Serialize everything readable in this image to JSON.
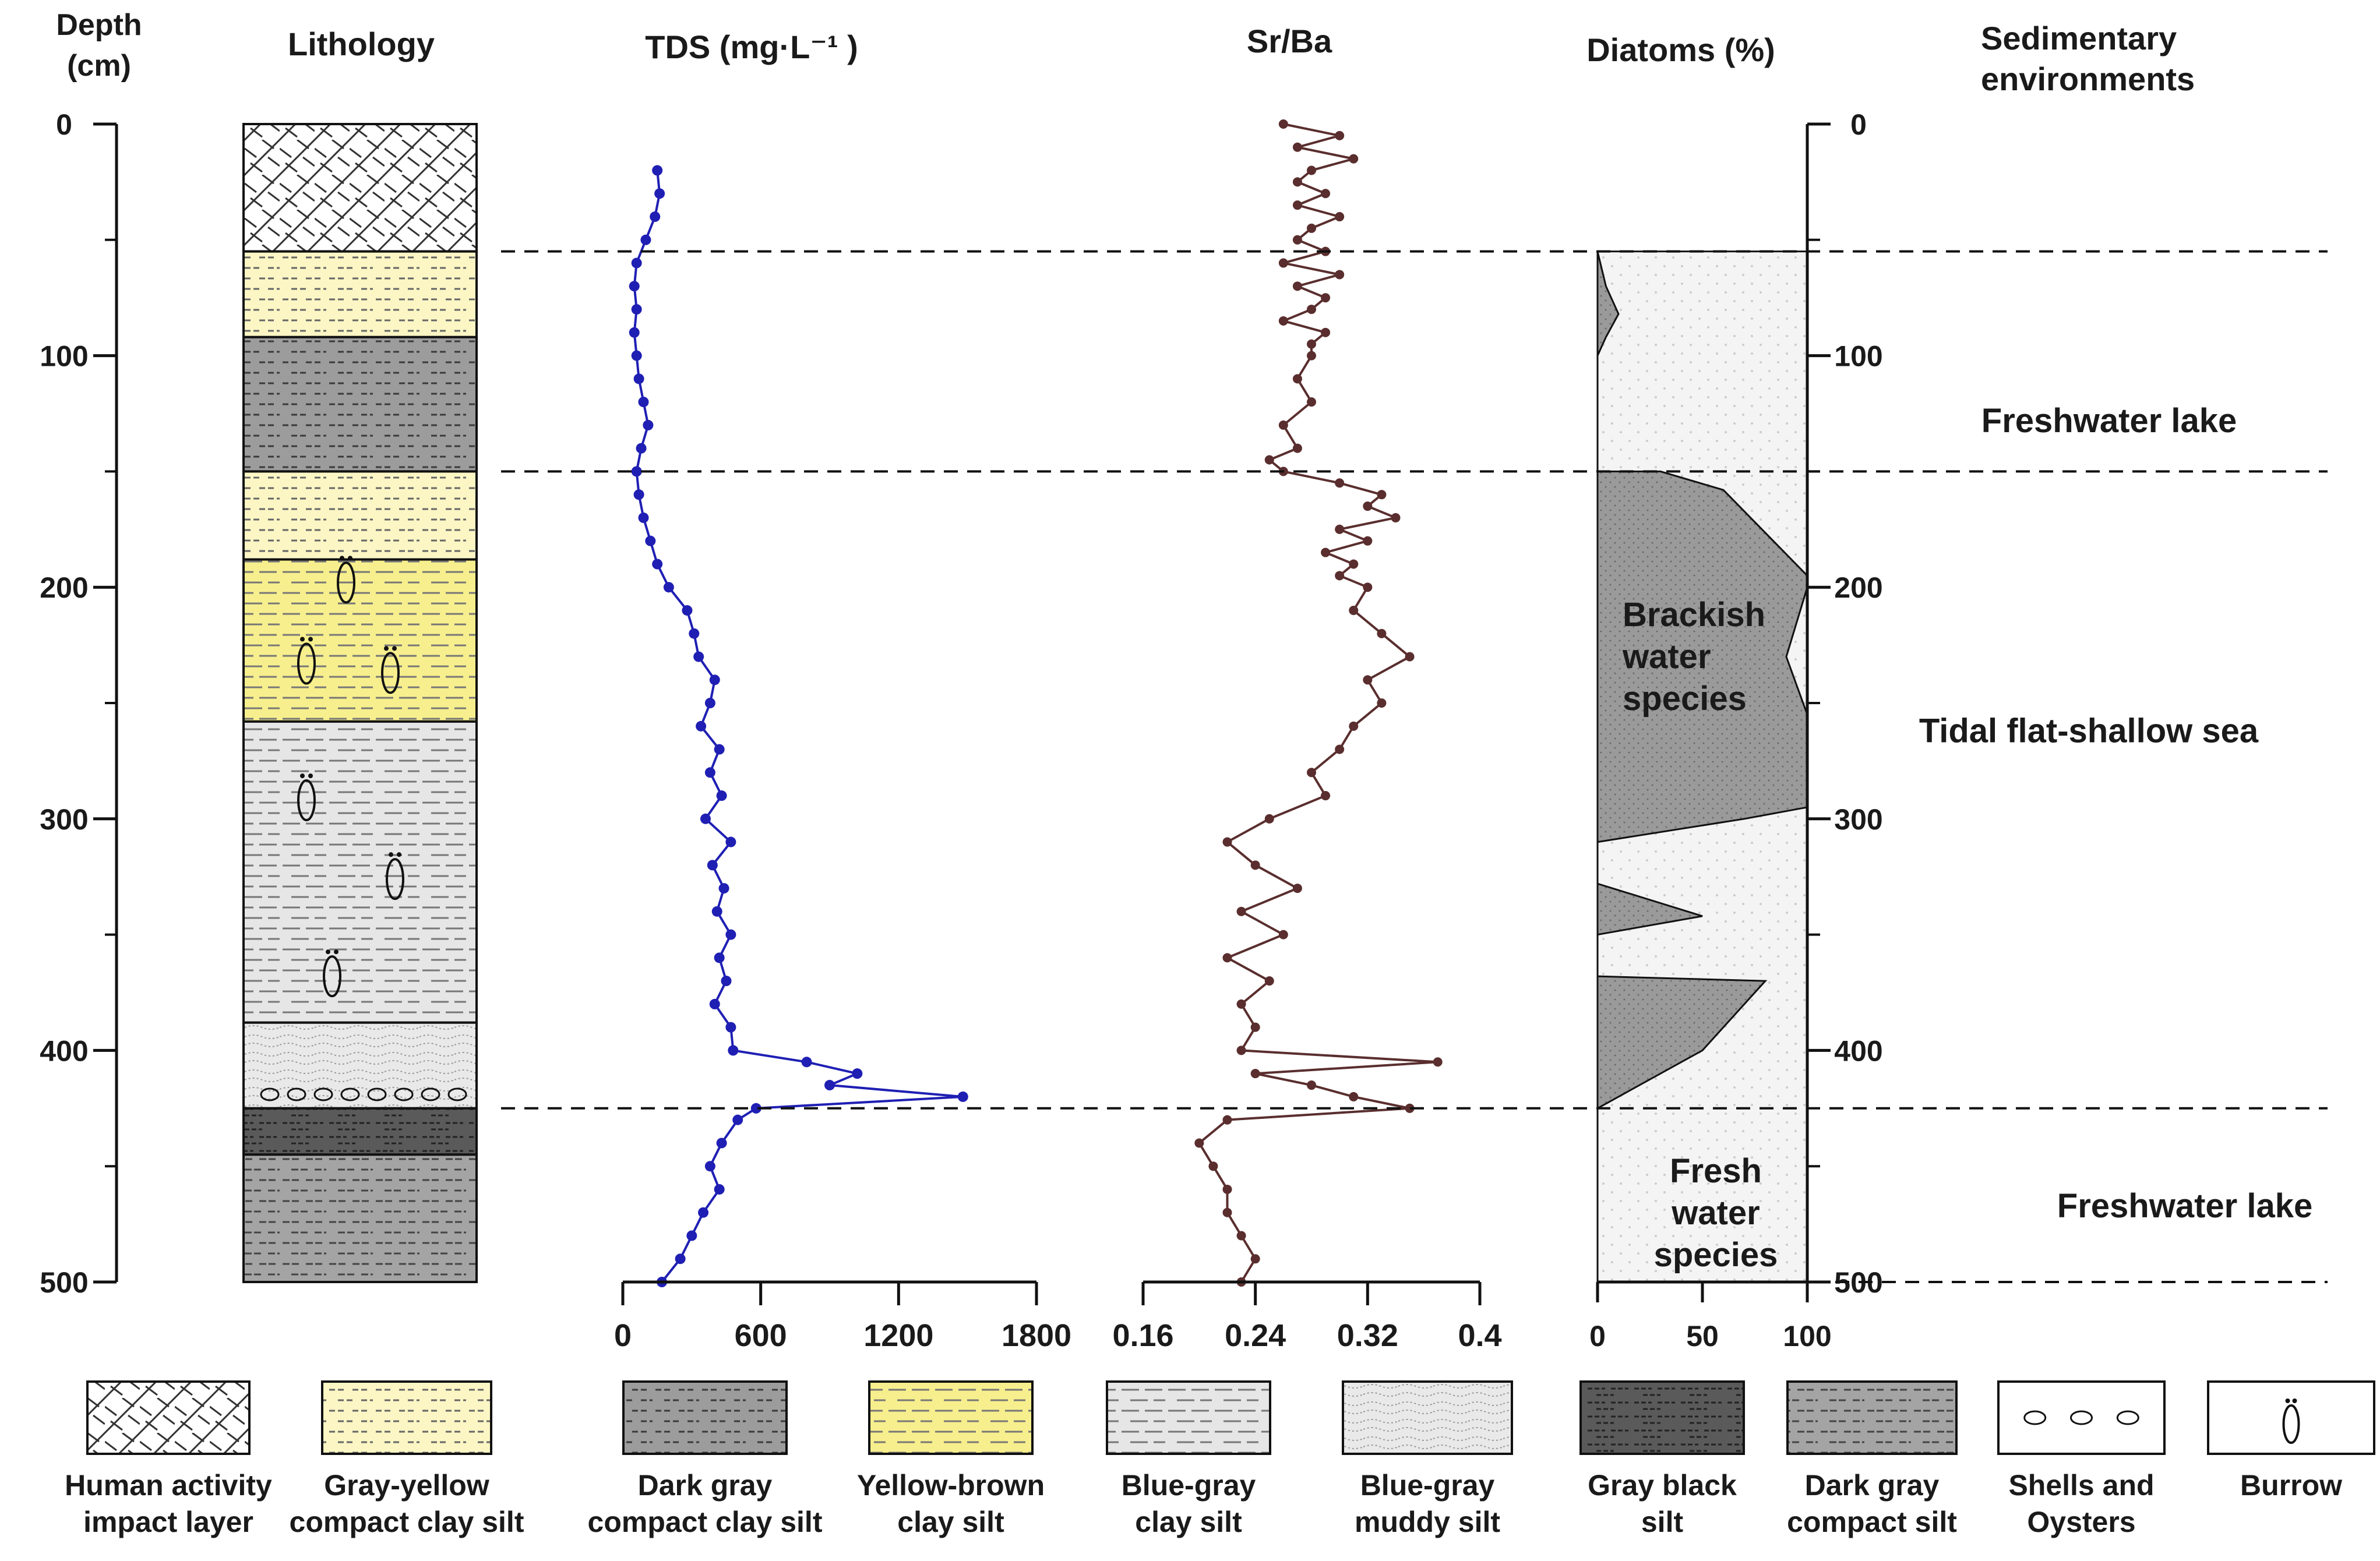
{
  "chart_data": {
    "type": "line",
    "title": "",
    "depth_axis": {
      "title_line1": "Depth",
      "title_line2": "(cm)",
      "ticks": [
        0,
        100,
        200,
        300,
        400,
        500
      ],
      "range": [
        0,
        500
      ]
    },
    "lithology": {
      "header": "Lithology",
      "layers": [
        {
          "top": 0,
          "bottom": 55,
          "type": "human"
        },
        {
          "top": 55,
          "bottom": 92,
          "type": "grayyellow"
        },
        {
          "top": 92,
          "bottom": 150,
          "type": "darkgray"
        },
        {
          "top": 150,
          "bottom": 188,
          "type": "grayyellow"
        },
        {
          "top": 188,
          "bottom": 258,
          "type": "yellowbrown"
        },
        {
          "top": 258,
          "bottom": 388,
          "type": "bluegray"
        },
        {
          "top": 388,
          "bottom": 425,
          "type": "muddy"
        },
        {
          "top": 425,
          "bottom": 445,
          "type": "grayblack"
        },
        {
          "top": 445,
          "bottom": 500,
          "type": "darkgraysilt"
        }
      ],
      "burrows": [
        {
          "depth": 198,
          "x": 0.44
        },
        {
          "depth": 233,
          "x": 0.27
        },
        {
          "depth": 237,
          "x": 0.63
        },
        {
          "depth": 292,
          "x": 0.27
        },
        {
          "depth": 326,
          "x": 0.65
        },
        {
          "depth": 368,
          "x": 0.38
        }
      ],
      "shells_depth": 419
    },
    "tds": {
      "header": "TDS (mg·L⁻¹ )",
      "xlim": [
        0,
        1800
      ],
      "ticks": [
        0,
        600,
        1200,
        1800
      ],
      "color": "#1f1fb4",
      "depth": [
        20,
        30,
        40,
        50,
        60,
        70,
        80,
        90,
        100,
        110,
        120,
        130,
        140,
        150,
        160,
        170,
        180,
        190,
        200,
        210,
        220,
        230,
        240,
        250,
        260,
        270,
        280,
        290,
        300,
        310,
        320,
        330,
        340,
        350,
        360,
        370,
        380,
        390,
        400,
        405,
        410,
        415,
        420,
        425,
        430,
        440,
        450,
        460,
        470,
        480,
        490,
        500
      ],
      "values": [
        150,
        160,
        140,
        100,
        60,
        50,
        60,
        50,
        60,
        70,
        90,
        110,
        80,
        60,
        70,
        90,
        120,
        150,
        200,
        280,
        310,
        330,
        400,
        380,
        340,
        420,
        380,
        430,
        360,
        470,
        390,
        440,
        410,
        470,
        420,
        450,
        400,
        470,
        480,
        800,
        1020,
        900,
        1480,
        580,
        500,
        430,
        380,
        420,
        350,
        300,
        250,
        170
      ]
    },
    "sr_ba": {
      "header": "Sr/Ba",
      "xlim": [
        0.16,
        0.4
      ],
      "ticks": [
        "0.16",
        "0.24",
        "0.32",
        "0.4"
      ],
      "color": "#5a2e2e",
      "depth": [
        0,
        5,
        10,
        15,
        20,
        25,
        30,
        35,
        40,
        45,
        50,
        55,
        60,
        65,
        70,
        75,
        80,
        85,
        90,
        95,
        100,
        110,
        120,
        130,
        140,
        145,
        150,
        155,
        160,
        165,
        170,
        175,
        180,
        185,
        190,
        195,
        200,
        210,
        220,
        230,
        240,
        250,
        260,
        270,
        280,
        290,
        300,
        310,
        320,
        330,
        340,
        350,
        360,
        370,
        380,
        390,
        400,
        405,
        410,
        415,
        420,
        425,
        430,
        440,
        450,
        460,
        470,
        480,
        490,
        500
      ],
      "values": [
        0.26,
        0.3,
        0.27,
        0.31,
        0.28,
        0.27,
        0.29,
        0.27,
        0.3,
        0.28,
        0.27,
        0.29,
        0.26,
        0.3,
        0.27,
        0.29,
        0.28,
        0.26,
        0.29,
        0.28,
        0.28,
        0.27,
        0.28,
        0.26,
        0.27,
        0.25,
        0.26,
        0.3,
        0.33,
        0.32,
        0.34,
        0.3,
        0.32,
        0.29,
        0.31,
        0.3,
        0.32,
        0.31,
        0.33,
        0.35,
        0.32,
        0.33,
        0.31,
        0.3,
        0.28,
        0.29,
        0.25,
        0.22,
        0.24,
        0.27,
        0.23,
        0.26,
        0.22,
        0.25,
        0.23,
        0.24,
        0.23,
        0.37,
        0.24,
        0.28,
        0.31,
        0.35,
        0.22,
        0.2,
        0.21,
        0.22,
        0.22,
        0.23,
        0.24,
        0.23
      ]
    },
    "diatoms": {
      "header": "Diatoms (%)",
      "xlim": [
        0,
        100
      ],
      "ticks": [
        0,
        50,
        100
      ],
      "polygons": [
        [
          [
            0,
            55
          ],
          [
            4,
            70
          ],
          [
            10,
            82
          ],
          [
            4,
            92
          ],
          [
            0,
            100
          ],
          [
            0,
            55
          ]
        ],
        [
          [
            0,
            150
          ],
          [
            30,
            150
          ],
          [
            60,
            158
          ],
          [
            100,
            195
          ],
          [
            100,
            200
          ],
          [
            90,
            230
          ],
          [
            100,
            255
          ],
          [
            100,
            295
          ],
          [
            70,
            300
          ],
          [
            0,
            310
          ],
          [
            0,
            150
          ]
        ],
        [
          [
            0,
            328
          ],
          [
            50,
            342
          ],
          [
            0,
            350
          ],
          [
            0,
            328
          ]
        ],
        [
          [
            0,
            368
          ],
          [
            80,
            370
          ],
          [
            50,
            400
          ],
          [
            0,
            425
          ],
          [
            0,
            368
          ]
        ],
        [
          [
            0,
            500
          ],
          [
            0,
            500
          ]
        ]
      ],
      "label_brackish": [
        "Brackish",
        "water",
        "species"
      ],
      "label_fresh": [
        "Fresh",
        "water",
        "species"
      ]
    },
    "environments": {
      "header_line1": "Sedimentary",
      "header_line2": "environments",
      "labels": [
        {
          "text": "Freshwater lake",
          "depth": 128
        },
        {
          "text": "Tidal flat-shallow sea",
          "depth": 262
        },
        {
          "text": "Freshwater lake",
          "depth": 467
        }
      ],
      "boundaries": [
        55,
        150,
        425,
        500
      ]
    },
    "legend": [
      {
        "key": "human",
        "line1": "Human activity",
        "line2": "impact layer"
      },
      {
        "key": "grayyellow",
        "line1": "Gray-yellow",
        "line2": "compact clay silt"
      },
      {
        "key": "darkgray",
        "line1": "Dark gray",
        "line2": "compact clay silt"
      },
      {
        "key": "yellowbrown",
        "line1": "Yellow-brown",
        "line2": "clay silt"
      },
      {
        "key": "bluegray",
        "line1": "Blue-gray",
        "line2": "clay silt"
      },
      {
        "key": "muddy",
        "line1": "Blue-gray",
        "line2": "muddy silt"
      },
      {
        "key": "grayblack",
        "line1": "Gray black",
        "line2": "silt"
      },
      {
        "key": "darkgraysilt",
        "line1": "Dark gray",
        "line2": "compact silt"
      },
      {
        "key": "shells",
        "line1": "Shells and",
        "line2": "Oysters"
      },
      {
        "key": "burrow",
        "line1": "Burrow",
        "line2": ""
      }
    ]
  }
}
